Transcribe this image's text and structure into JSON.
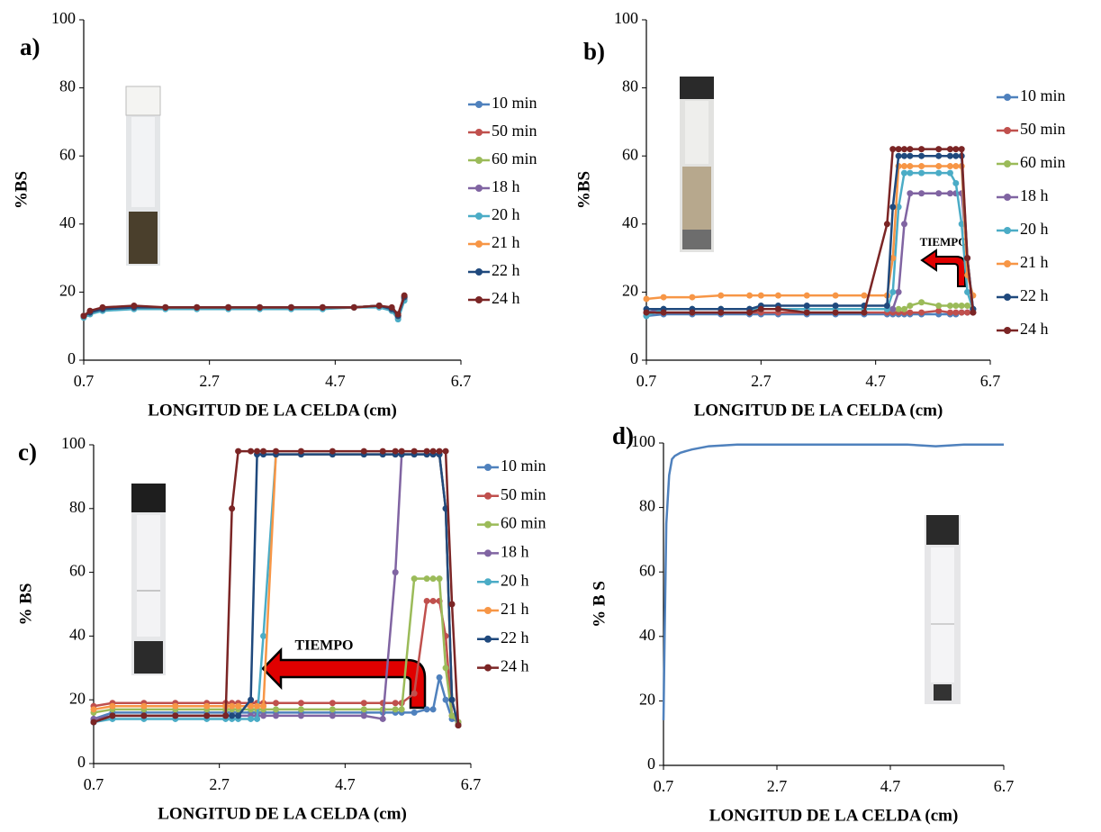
{
  "chart_data": [
    {
      "type": "line",
      "panel_label": "a)",
      "ylabel": "%BS",
      "xlabel": "LONGITUD DE LA CELDA (cm)",
      "xlim": [
        0.7,
        6.7
      ],
      "xticks": [
        0.7,
        2.7,
        4.7,
        6.7
      ],
      "ylim": [
        0,
        100
      ],
      "yticks": [
        0,
        20,
        40,
        60,
        80,
        100
      ],
      "grid": false,
      "legend": "right",
      "x": [
        0.7,
        0.8,
        1.0,
        1.5,
        2.0,
        2.5,
        3.0,
        3.5,
        4.0,
        4.5,
        5.0,
        5.4,
        5.6,
        5.7,
        5.8
      ],
      "series": [
        {
          "name": "10 min",
          "color": "#4f81bd",
          "values": [
            13,
            14,
            15,
            15.5,
            15.5,
            15.5,
            15.5,
            15.5,
            15.5,
            15.5,
            15.5,
            16,
            15,
            12.5,
            18
          ]
        },
        {
          "name": "50 min",
          "color": "#c0504d",
          "values": [
            13,
            14,
            15,
            15.5,
            15.5,
            15.5,
            15.5,
            15.5,
            15.5,
            15.5,
            15.5,
            16,
            15,
            13,
            18
          ]
        },
        {
          "name": "60 min",
          "color": "#9bbb59",
          "values": [
            13,
            14,
            15,
            15.5,
            15.5,
            15.5,
            15.5,
            15.5,
            15.5,
            15.5,
            15.5,
            16,
            15,
            13,
            18.5
          ]
        },
        {
          "name": "18 h",
          "color": "#8064a2",
          "values": [
            13,
            14,
            15,
            15.5,
            15.5,
            15.5,
            15.5,
            15.5,
            15.5,
            15.5,
            15.5,
            16,
            15,
            13,
            18.5
          ]
        },
        {
          "name": "20 h",
          "color": "#4bacc6",
          "values": [
            12.5,
            13.5,
            14.5,
            15,
            15,
            15,
            15,
            15,
            15,
            15,
            15.5,
            15.5,
            14.5,
            12,
            17.5
          ]
        },
        {
          "name": "21 h",
          "color": "#f79646",
          "values": [
            13,
            14,
            15,
            15.5,
            15.5,
            15.5,
            15.5,
            15.5,
            15.5,
            15.5,
            15.5,
            16,
            15,
            13,
            18.5
          ]
        },
        {
          "name": "22 h",
          "color": "#1f497d",
          "values": [
            13,
            14,
            15,
            15.5,
            15.5,
            15.5,
            15.5,
            15.5,
            15.5,
            15.5,
            15.5,
            16,
            15,
            13,
            18.5
          ]
        },
        {
          "name": "24 h",
          "color": "#7b2525",
          "values": [
            13,
            14.5,
            15.5,
            16,
            15.5,
            15.5,
            15.5,
            15.5,
            15.5,
            15.5,
            15.5,
            16,
            15.5,
            13.5,
            19
          ]
        }
      ]
    },
    {
      "type": "line",
      "panel_label": "b)",
      "ylabel": "%BS",
      "xlabel": "LONGITUD DE LA CELDA (cm)",
      "annotation": "TIEMPO",
      "xlim": [
        0.7,
        6.7
      ],
      "xticks": [
        0.7,
        2.7,
        4.7,
        6.7
      ],
      "ylim": [
        0,
        100
      ],
      "yticks": [
        0,
        20,
        40,
        60,
        80,
        100
      ],
      "grid": false,
      "legend": "right",
      "x": [
        0.7,
        1.0,
        1.5,
        2.0,
        2.5,
        2.7,
        3.0,
        3.5,
        4.0,
        4.5,
        4.9,
        5.0,
        5.1,
        5.2,
        5.3,
        5.5,
        5.8,
        6.0,
        6.1,
        6.2,
        6.3,
        6.4
      ],
      "series": [
        {
          "name": "10 min",
          "color": "#4f81bd",
          "values": [
            13,
            13.5,
            13.5,
            13.5,
            13.5,
            13.5,
            13.5,
            13.5,
            13.5,
            13.5,
            13.5,
            13.5,
            13.5,
            13.5,
            13.5,
            13.5,
            13.5,
            13.5,
            13.5,
            14,
            14,
            14
          ]
        },
        {
          "name": "50 min",
          "color": "#c0504d",
          "values": [
            14,
            14,
            14,
            14,
            14,
            14,
            14,
            14,
            14,
            14,
            14,
            14,
            14,
            14,
            14,
            14,
            14.5,
            14,
            14,
            14,
            14,
            14
          ]
        },
        {
          "name": "60 min",
          "color": "#9bbb59",
          "values": [
            14,
            15,
            15,
            15,
            15,
            15,
            15,
            15,
            15,
            15,
            15,
            15,
            15,
            15,
            16,
            17,
            16,
            16,
            16,
            16,
            16,
            15
          ]
        },
        {
          "name": "18 h",
          "color": "#8064a2",
          "values": [
            14,
            15,
            15,
            15,
            15,
            15,
            15,
            15,
            15,
            15,
            15,
            15,
            20,
            40,
            49,
            49,
            49,
            49,
            49,
            49,
            30,
            15
          ]
        },
        {
          "name": "20 h",
          "color": "#4bacc6",
          "values": [
            13,
            15,
            15,
            15,
            15,
            15,
            15,
            15,
            15,
            15,
            15,
            20,
            45,
            55,
            55,
            55,
            55,
            55,
            52,
            40,
            20,
            15
          ]
        },
        {
          "name": "21 h",
          "color": "#f79646",
          "values": [
            18,
            18.5,
            18.5,
            19,
            19,
            19,
            19,
            19,
            19,
            19,
            19,
            30,
            57,
            57,
            57,
            57,
            57,
            57,
            57,
            57,
            25,
            19
          ]
        },
        {
          "name": "22 h",
          "color": "#1f497d",
          "values": [
            15,
            15,
            15,
            15,
            15,
            16,
            16,
            16,
            16,
            16,
            16,
            45,
            60,
            60,
            60,
            60,
            60,
            60,
            60,
            60,
            30,
            15
          ]
        },
        {
          "name": "24 h",
          "color": "#7b2525",
          "values": [
            14,
            14,
            14,
            14,
            14,
            15,
            15,
            14,
            14,
            14,
            40,
            62,
            62,
            62,
            62,
            62,
            62,
            62,
            62,
            62,
            30,
            14
          ]
        }
      ]
    },
    {
      "type": "line",
      "panel_label": "c)",
      "ylabel": "% BS",
      "xlabel": "LONGITUD DE LA CELDA (cm)",
      "annotation": "TIEMPO",
      "xlim": [
        0.7,
        6.7
      ],
      "xticks": [
        0.7,
        2.7,
        4.7,
        6.7
      ],
      "ylim": [
        0,
        100
      ],
      "yticks": [
        0,
        20,
        40,
        60,
        80,
        100
      ],
      "grid": false,
      "legend": "right",
      "x": [
        0.7,
        1.0,
        1.5,
        2.0,
        2.5,
        2.8,
        2.9,
        3.0,
        3.2,
        3.3,
        3.4,
        3.6,
        4.0,
        4.5,
        5.0,
        5.3,
        5.5,
        5.6,
        5.8,
        6.0,
        6.1,
        6.2,
        6.3,
        6.4,
        6.5
      ],
      "series": [
        {
          "name": "10 min",
          "color": "#4f81bd",
          "values": [
            14,
            16,
            16,
            16,
            16,
            16,
            16,
            16,
            16,
            16,
            16,
            16,
            16,
            16,
            16,
            16,
            16,
            16,
            16,
            17,
            17,
            27,
            20,
            14,
            13
          ]
        },
        {
          "name": "50 min",
          "color": "#c0504d",
          "values": [
            18,
            19,
            19,
            19,
            19,
            19,
            19,
            19,
            19,
            19,
            19,
            19,
            19,
            19,
            19,
            19,
            19,
            19,
            22,
            51,
            51,
            51,
            40,
            15,
            13
          ]
        },
        {
          "name": "60 min",
          "color": "#9bbb59",
          "values": [
            16,
            17,
            17,
            17,
            17,
            17,
            17,
            17,
            17,
            17,
            17,
            17,
            17,
            17,
            17,
            17,
            17,
            17,
            58,
            58,
            58,
            58,
            30,
            15,
            13
          ]
        },
        {
          "name": "18 h",
          "color": "#8064a2",
          "values": [
            14,
            15,
            15,
            15,
            15,
            15,
            15,
            15,
            15,
            15,
            15,
            15,
            15,
            15,
            15,
            14,
            60,
            97,
            97,
            97,
            97,
            97,
            80,
            20,
            12
          ]
        },
        {
          "name": "20 h",
          "color": "#4bacc6",
          "values": [
            13,
            14,
            14,
            14,
            14,
            14,
            14,
            14,
            14,
            14,
            40,
            97,
            97,
            97,
            97,
            97,
            97,
            97,
            97,
            97,
            97,
            97,
            80,
            20,
            12
          ]
        },
        {
          "name": "21 h",
          "color": "#f79646",
          "values": [
            17,
            18,
            18,
            18,
            18,
            18,
            18,
            18,
            18,
            18,
            18,
            97,
            97,
            97,
            97,
            97,
            97,
            97,
            97,
            97,
            97,
            97,
            80,
            20,
            12
          ]
        },
        {
          "name": "22 h",
          "color": "#1f497d",
          "values": [
            13,
            15,
            15,
            15,
            15,
            15,
            15,
            15,
            20,
            97,
            97,
            97,
            97,
            97,
            97,
            97,
            97,
            97,
            97,
            97,
            97,
            97,
            80,
            20,
            12
          ]
        },
        {
          "name": "24 h",
          "color": "#7b2525",
          "values": [
            13,
            15,
            15,
            15,
            15,
            15,
            80,
            98,
            98,
            98,
            98,
            98,
            98,
            98,
            98,
            98,
            98,
            98,
            98,
            98,
            98,
            98,
            98,
            50,
            12
          ]
        }
      ]
    },
    {
      "type": "line",
      "panel_label": "d)",
      "ylabel": "% B S",
      "xlabel": "LONGITUD DE LA CELDA (cm)",
      "xlim": [
        0.7,
        6.7
      ],
      "xticks": [
        0.7,
        2.7,
        4.7,
        6.7
      ],
      "ylim": [
        0,
        100
      ],
      "yticks": [
        0,
        20,
        40,
        60,
        80,
        100
      ],
      "grid": false,
      "x": [
        0.7,
        0.72,
        0.75,
        0.8,
        0.85,
        0.9,
        1.0,
        1.2,
        1.5,
        2.0,
        2.5,
        3.0,
        3.5,
        4.0,
        4.5,
        5.0,
        5.5,
        6.0,
        6.5,
        6.7
      ],
      "series": [
        {
          "color": "#4f81bd",
          "values": [
            14,
            40,
            75,
            90,
            95,
            96,
            97,
            98,
            99,
            99.5,
            99.5,
            99.5,
            99.5,
            99.5,
            99.5,
            99.5,
            99,
            99.5,
            99.5,
            99.5
          ]
        }
      ]
    }
  ]
}
